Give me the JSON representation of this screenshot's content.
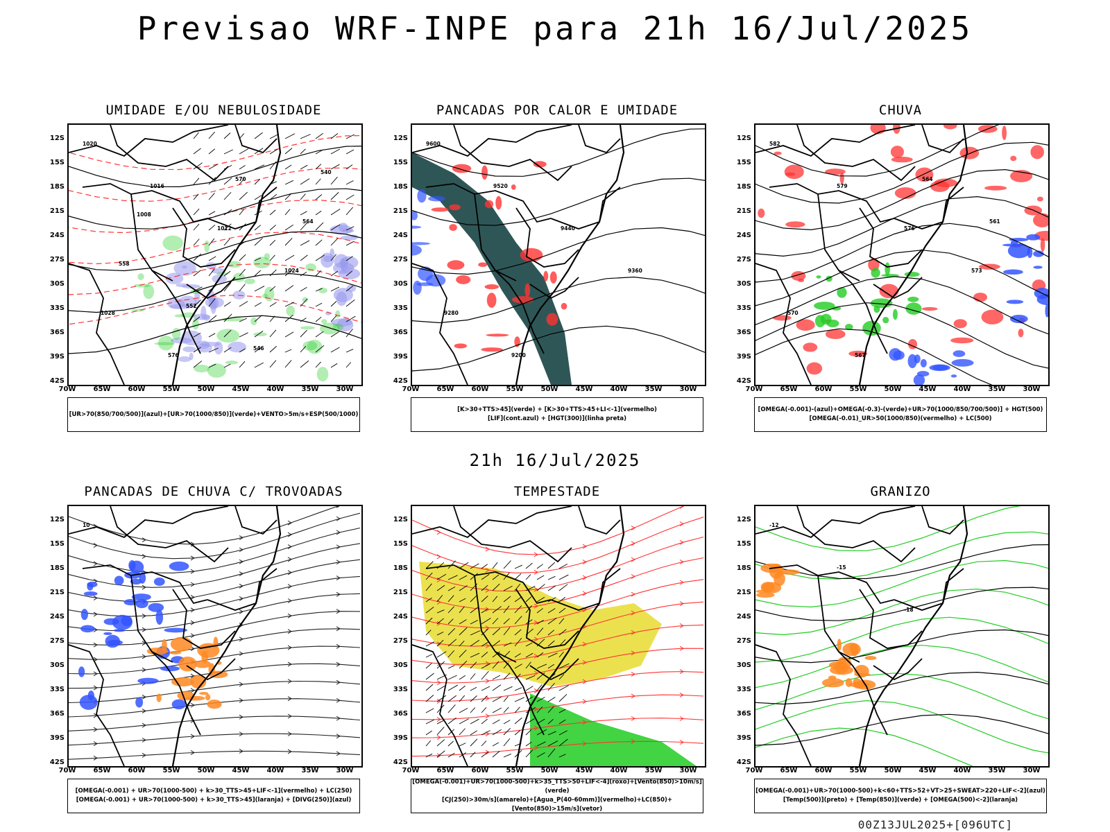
{
  "title": "Previsao WRF-INPE  para 21h 16/Jul/2025",
  "mid_title": "21h 16/Jul/2025",
  "footer": "00Z13JUL2025+[096UTC]",
  "lat_labels": [
    "12S",
    "15S",
    "18S",
    "21S",
    "24S",
    "27S",
    "30S",
    "33S",
    "36S",
    "39S",
    "42S"
  ],
  "lon_labels": [
    "70W",
    "65W",
    "60W",
    "55W",
    "50W",
    "45W",
    "40W",
    "35W",
    "30W"
  ],
  "panels": [
    {
      "title": "UMIDADE E/OU NEBULOSIDADE",
      "legend": [
        "[UR>70(850/700/500)](azul)+[UR>70(1000/850)](verde)+VENTO>5m/s+ESP(500/1000)"
      ],
      "contour_labels": [
        "1020",
        "1016",
        "1012",
        "1024",
        "1028",
        "576",
        "570",
        "564",
        "558",
        "552",
        "546",
        "540",
        "1008"
      ]
    },
    {
      "title": "PANCADAS POR CALOR E UMIDADE",
      "legend": [
        "[K>30+TTS>45](verde) + [K>30+TTS>45+LI<-1](vermelho)",
        "[LIF](cont.azul) + [HGT(300)](linha preta)"
      ],
      "contour_labels": [
        "9600",
        "9520",
        "9440",
        "9360",
        "9280",
        "9200"
      ]
    },
    {
      "title": "CHUVA",
      "legend": [
        "[OMEGA(-0.001)-(azul)+OMEGA(-0.3)-(verde)+UR>70(1000/850/700/500)] + HGT(500)",
        "[OMEGA(-0.01)_UR>50(1000/850)(vermelho) + LC(500)"
      ],
      "contour_labels": [
        "582",
        "579",
        "576",
        "573",
        "570",
        "567",
        "564",
        "561"
      ]
    },
    {
      "title": "PANCADAS DE CHUVA C/ TROVOADAS",
      "legend": [
        "[OMEGA(-0.001) + UR>70(1000-500) + k>30_TTS>45+LIF<-1](vermelho) + LC(250)",
        "[OMEGA(-0.001) + UR>70(1000-500) + k>30_TTS>45](laranja) + [DIVG(250)](azul)"
      ],
      "contour_labels": [
        "10"
      ]
    },
    {
      "title": "TEMPESTADE",
      "legend": [
        "[OMEGA(-0.001)+UR>70(1000-500)+k>35_TTS>50+LIF<-4](roxo)+[Vento(850)>10m/s](verde)",
        "[CJ(250)>30m/s](amarelo)+[Agua_P(40-60mm)](vermelho)+LC(850)+[Vento(850)>15m/s](vetor)"
      ],
      "contour_labels": []
    },
    {
      "title": "GRANIZO",
      "legend": [
        "[OMEGA(-0.001)+UR>70(1000-500)+k<60+TTS>52+VT>25+SWEAT>220+LIF<-2](azul)",
        "[Temp(500)](preto) + [Temp(850)](verde) + [OMEGA(500)<-2](laranja)"
      ],
      "contour_labels": [
        "-12",
        "-15",
        "-18"
      ]
    }
  ],
  "colors": {
    "blue": "#3355ff",
    "green": "#22cc22",
    "red": "#ff3333",
    "orange": "#ff8822",
    "yellow": "#e8dc30",
    "lavender": "#9999ee",
    "darkteal": "#2f5656"
  }
}
